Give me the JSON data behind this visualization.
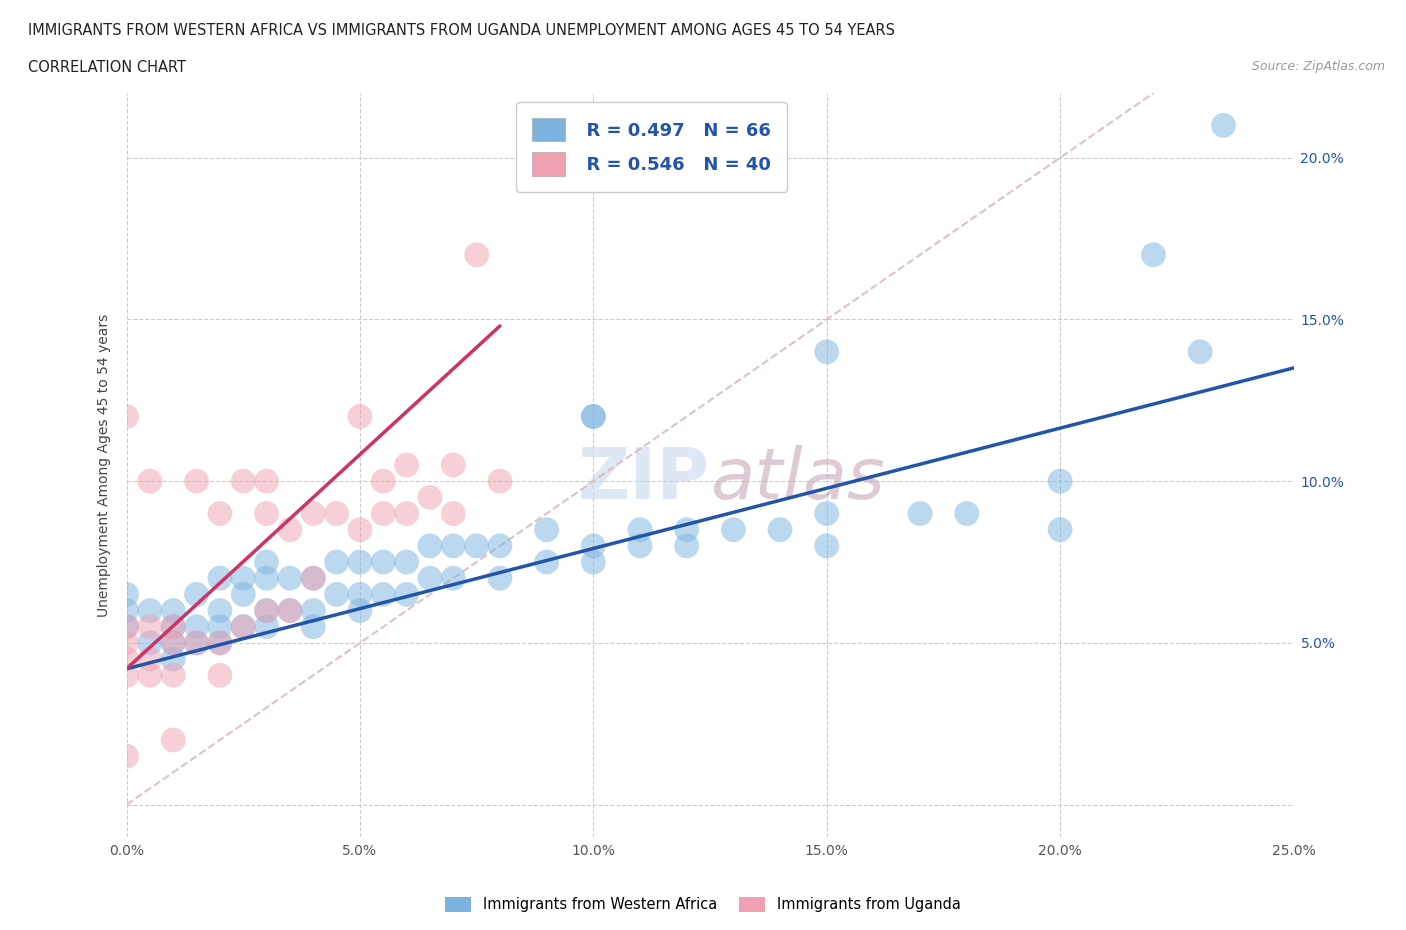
{
  "title_line1": "IMMIGRANTS FROM WESTERN AFRICA VS IMMIGRANTS FROM UGANDA UNEMPLOYMENT AMONG AGES 45 TO 54 YEARS",
  "title_line2": "CORRELATION CHART",
  "source": "Source: ZipAtlas.com",
  "ylabel": "Unemployment Among Ages 45 to 54 years",
  "xlim": [
    0.0,
    0.25
  ],
  "ylim": [
    -0.01,
    0.22
  ],
  "xticks": [
    0.0,
    0.05,
    0.1,
    0.15,
    0.2,
    0.25
  ],
  "yticks": [
    0.0,
    0.05,
    0.1,
    0.15,
    0.2
  ],
  "xtick_labels": [
    "0.0%",
    "5.0%",
    "10.0%",
    "15.0%",
    "20.0%",
    "25.0%"
  ],
  "ytick_labels_right": [
    "",
    "5.0%",
    "10.0%",
    "15.0%",
    "20.0%"
  ],
  "legend_r1": "R = 0.497",
  "legend_n1": "N = 66",
  "legend_r2": "R = 0.546",
  "legend_n2": "N = 40",
  "color_blue": "#7ab3e0",
  "color_pink": "#f0a0b0",
  "line_blue": "#2255aa",
  "line_pink": "#cc3366",
  "diag_color": "#ddbbbb",
  "blue_scatter_x": [
    0.0,
    0.0,
    0.0,
    0.005,
    0.005,
    0.01,
    0.01,
    0.01,
    0.01,
    0.015,
    0.015,
    0.015,
    0.02,
    0.02,
    0.02,
    0.02,
    0.025,
    0.025,
    0.025,
    0.03,
    0.03,
    0.03,
    0.03,
    0.035,
    0.035,
    0.04,
    0.04,
    0.04,
    0.045,
    0.045,
    0.05,
    0.05,
    0.05,
    0.055,
    0.055,
    0.06,
    0.06,
    0.065,
    0.065,
    0.07,
    0.07,
    0.075,
    0.08,
    0.08,
    0.09,
    0.09,
    0.1,
    0.1,
    0.1,
    0.11,
    0.11,
    0.12,
    0.13,
    0.14,
    0.15,
    0.15,
    0.17,
    0.18,
    0.2,
    0.22,
    0.1,
    0.12,
    0.15,
    0.2,
    0.23,
    0.235
  ],
  "blue_scatter_y": [
    0.055,
    0.06,
    0.065,
    0.05,
    0.06,
    0.045,
    0.05,
    0.055,
    0.06,
    0.05,
    0.055,
    0.065,
    0.05,
    0.055,
    0.06,
    0.07,
    0.055,
    0.065,
    0.07,
    0.055,
    0.06,
    0.07,
    0.075,
    0.06,
    0.07,
    0.055,
    0.06,
    0.07,
    0.065,
    0.075,
    0.06,
    0.065,
    0.075,
    0.065,
    0.075,
    0.065,
    0.075,
    0.07,
    0.08,
    0.07,
    0.08,
    0.08,
    0.07,
    0.08,
    0.075,
    0.085,
    0.075,
    0.08,
    0.12,
    0.08,
    0.085,
    0.08,
    0.085,
    0.085,
    0.09,
    0.14,
    0.09,
    0.09,
    0.1,
    0.17,
    0.12,
    0.085,
    0.08,
    0.085,
    0.14,
    0.21
  ],
  "pink_scatter_x": [
    0.0,
    0.0,
    0.0,
    0.0,
    0.0,
    0.005,
    0.005,
    0.005,
    0.005,
    0.01,
    0.01,
    0.01,
    0.015,
    0.015,
    0.02,
    0.02,
    0.02,
    0.025,
    0.025,
    0.03,
    0.03,
    0.03,
    0.035,
    0.035,
    0.04,
    0.04,
    0.045,
    0.05,
    0.05,
    0.055,
    0.055,
    0.06,
    0.06,
    0.065,
    0.07,
    0.07,
    0.075,
    0.08,
    0.0,
    0.01
  ],
  "pink_scatter_y": [
    0.04,
    0.045,
    0.05,
    0.055,
    0.12,
    0.04,
    0.045,
    0.055,
    0.1,
    0.04,
    0.05,
    0.055,
    0.05,
    0.1,
    0.04,
    0.05,
    0.09,
    0.055,
    0.1,
    0.06,
    0.09,
    0.1,
    0.06,
    0.085,
    0.07,
    0.09,
    0.09,
    0.085,
    0.12,
    0.09,
    0.1,
    0.09,
    0.105,
    0.095,
    0.09,
    0.105,
    0.17,
    0.1,
    0.015,
    0.02
  ],
  "blue_line_x": [
    0.0,
    0.25
  ],
  "blue_line_y": [
    0.042,
    0.135
  ],
  "pink_line_x": [
    0.0,
    0.08
  ],
  "pink_line_y": [
    0.042,
    0.148
  ],
  "diag_line_x": [
    0.0,
    0.22
  ],
  "diag_line_y": [
    0.0,
    0.22
  ]
}
